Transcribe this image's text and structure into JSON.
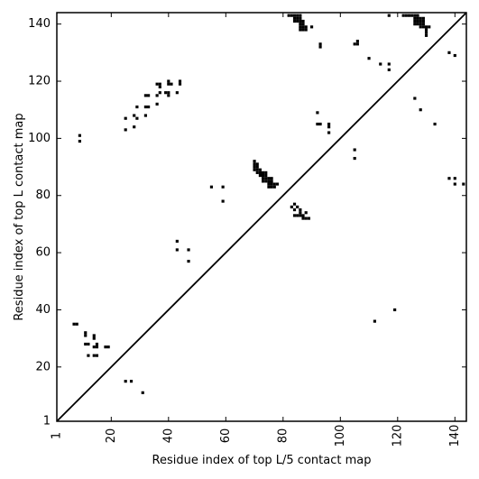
{
  "chart_data": {
    "type": "heatmap",
    "xlabel": "Residue index of top L/5 contact map",
    "ylabel": "Residue index of top L contact map",
    "xlim": [
      1,
      144
    ],
    "ylim": [
      1,
      144
    ],
    "x_ticks": [
      "1",
      "20",
      "40",
      "60",
      "80",
      "100",
      "120",
      "140"
    ],
    "y_ticks": [
      "1",
      "20",
      "40",
      "60",
      "80",
      "100",
      "120",
      "140"
    ],
    "diagonal_line": true,
    "grid": false,
    "mark_color": "#000000",
    "lower_triangle_contacts": [
      [
        25,
        15
      ],
      [
        27,
        15
      ],
      [
        31,
        11
      ],
      [
        7,
        35
      ],
      [
        8,
        35
      ],
      [
        11,
        31
      ],
      [
        11,
        32
      ],
      [
        14,
        30
      ],
      [
        14,
        31
      ],
      [
        11,
        28
      ],
      [
        12,
        28
      ],
      [
        14,
        27
      ],
      [
        15,
        27
      ],
      [
        15,
        28
      ],
      [
        18,
        27
      ],
      [
        19,
        27
      ],
      [
        12,
        24
      ],
      [
        14,
        24
      ],
      [
        15,
        24
      ],
      [
        43,
        64
      ],
      [
        43,
        61
      ],
      [
        47,
        61
      ],
      [
        47,
        57
      ],
      [
        55,
        83
      ],
      [
        59,
        83
      ],
      [
        59,
        78
      ],
      [
        70,
        92
      ],
      [
        70,
        91
      ],
      [
        71,
        91
      ],
      [
        70,
        90
      ],
      [
        71,
        90
      ],
      [
        70,
        89
      ],
      [
        71,
        89
      ],
      [
        72,
        89
      ],
      [
        71,
        88
      ],
      [
        72,
        88
      ],
      [
        73,
        88
      ],
      [
        74,
        88
      ],
      [
        72,
        87
      ],
      [
        73,
        87
      ],
      [
        74,
        87
      ],
      [
        73,
        86
      ],
      [
        74,
        86
      ],
      [
        75,
        86
      ],
      [
        76,
        86
      ],
      [
        73,
        85
      ],
      [
        74,
        85
      ],
      [
        75,
        85
      ],
      [
        76,
        85
      ],
      [
        75,
        84
      ],
      [
        76,
        84
      ],
      [
        77,
        84
      ],
      [
        78,
        84
      ],
      [
        75,
        83
      ],
      [
        76,
        83
      ],
      [
        77,
        83
      ],
      [
        83,
        76
      ],
      [
        84,
        77
      ],
      [
        85,
        76
      ],
      [
        86,
        75
      ],
      [
        84,
        75
      ],
      [
        86,
        74
      ],
      [
        88,
        74
      ],
      [
        84,
        73
      ],
      [
        85,
        73
      ],
      [
        86,
        73
      ],
      [
        87,
        73
      ],
      [
        87,
        72
      ],
      [
        88,
        72
      ],
      [
        89,
        72
      ],
      [
        105,
        96
      ],
      [
        105,
        93
      ],
      [
        112,
        36
      ],
      [
        119,
        40
      ]
    ],
    "upper_triangle_contacts": [
      [
        9,
        101
      ],
      [
        9,
        99
      ],
      [
        25,
        107
      ],
      [
        25,
        103
      ],
      [
        28,
        104
      ],
      [
        28,
        108
      ],
      [
        29,
        107
      ],
      [
        29,
        111
      ],
      [
        32,
        108
      ],
      [
        32,
        111
      ],
      [
        33,
        111
      ],
      [
        32,
        115
      ],
      [
        33,
        115
      ],
      [
        36,
        112
      ],
      [
        36,
        115
      ],
      [
        37,
        116
      ],
      [
        36,
        119
      ],
      [
        37,
        119
      ],
      [
        37,
        118
      ],
      [
        39,
        116
      ],
      [
        40,
        115
      ],
      [
        40,
        116
      ],
      [
        40,
        120
      ],
      [
        41,
        119
      ],
      [
        40,
        119
      ],
      [
        43,
        116
      ],
      [
        44,
        120
      ],
      [
        44,
        119
      ],
      [
        92,
        109
      ],
      [
        92,
        105
      ],
      [
        93,
        105
      ],
      [
        96,
        105
      ],
      [
        96,
        104
      ],
      [
        96,
        102
      ],
      [
        93,
        133
      ],
      [
        93,
        132
      ],
      [
        90,
        139
      ],
      [
        82,
        143
      ],
      [
        83,
        143
      ],
      [
        84,
        143
      ],
      [
        85,
        143
      ],
      [
        86,
        143
      ],
      [
        84,
        142
      ],
      [
        85,
        142
      ],
      [
        86,
        142
      ],
      [
        84,
        141
      ],
      [
        85,
        141
      ],
      [
        86,
        141
      ],
      [
        87,
        141
      ],
      [
        86,
        140
      ],
      [
        87,
        140
      ],
      [
        86,
        139
      ],
      [
        87,
        139
      ],
      [
        88,
        139
      ],
      [
        86,
        138
      ],
      [
        87,
        138
      ],
      [
        88,
        138
      ],
      [
        105,
        133
      ],
      [
        106,
        133
      ],
      [
        106,
        134
      ],
      [
        110,
        128
      ],
      [
        114,
        126
      ],
      [
        117,
        126
      ],
      [
        117,
        124
      ],
      [
        117,
        143
      ],
      [
        122,
        143
      ],
      [
        123,
        143
      ],
      [
        124,
        143
      ],
      [
        125,
        143
      ],
      [
        126,
        143
      ],
      [
        127,
        143
      ],
      [
        126,
        142
      ],
      [
        127,
        142
      ],
      [
        128,
        142
      ],
      [
        129,
        142
      ],
      [
        126,
        141
      ],
      [
        127,
        141
      ],
      [
        128,
        141
      ],
      [
        129,
        141
      ],
      [
        126,
        140
      ],
      [
        127,
        140
      ],
      [
        128,
        140
      ],
      [
        129,
        140
      ],
      [
        128,
        139
      ],
      [
        129,
        139
      ],
      [
        130,
        139
      ],
      [
        131,
        139
      ],
      [
        130,
        138
      ],
      [
        130,
        137
      ],
      [
        130,
        136
      ],
      [
        126,
        114
      ],
      [
        128,
        110
      ],
      [
        133,
        105
      ],
      [
        138,
        130
      ],
      [
        140,
        129
      ],
      [
        138,
        86
      ],
      [
        140,
        86
      ],
      [
        140,
        84
      ],
      [
        143,
        84
      ]
    ]
  }
}
